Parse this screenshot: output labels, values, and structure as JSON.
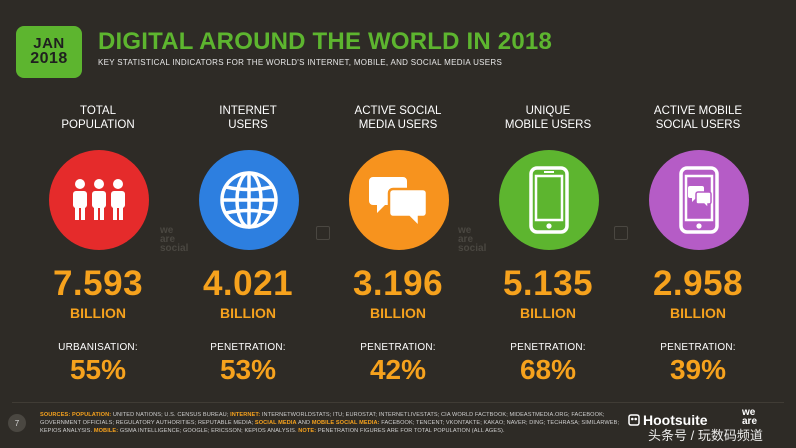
{
  "badge": {
    "month": "JAN",
    "year": "2018"
  },
  "header": {
    "title": "DIGITAL AROUND THE WORLD IN 2018",
    "subtitle": "KEY STATISTICAL INDICATORS FOR THE WORLD'S INTERNET, MOBILE, AND SOCIAL MEDIA USERS"
  },
  "colors": {
    "accent_green": "#5db52f",
    "accent_orange": "#f6a21d",
    "background": "#2e2b26",
    "population": "#e52b2b",
    "internet": "#2d7fe0",
    "social": "#f7931e",
    "mobile": "#5db52f",
    "mobile_social": "#b55cc6"
  },
  "columns": [
    {
      "label_line1": "TOTAL",
      "label_line2": "POPULATION",
      "icon": "people-icon",
      "value": "7.593",
      "unit": "BILLION",
      "stat_label": "URBANISATION:",
      "stat_value": "55%"
    },
    {
      "label_line1": "INTERNET",
      "label_line2": "USERS",
      "icon": "globe-icon",
      "value": "4.021",
      "unit": "BILLION",
      "stat_label": "PENETRATION:",
      "stat_value": "53%"
    },
    {
      "label_line1": "ACTIVE SOCIAL",
      "label_line2": "MEDIA USERS",
      "icon": "chat-bubbles-icon",
      "value": "3.196",
      "unit": "BILLION",
      "stat_label": "PENETRATION:",
      "stat_value": "42%"
    },
    {
      "label_line1": "UNIQUE",
      "label_line2": "MOBILE USERS",
      "icon": "smartphone-icon",
      "value": "5.135",
      "unit": "BILLION",
      "stat_label": "PENETRATION:",
      "stat_value": "68%"
    },
    {
      "label_line1": "ACTIVE MOBILE",
      "label_line2": "SOCIAL USERS",
      "icon": "mobile-chat-icon",
      "value": "2.958",
      "unit": "BILLION",
      "stat_label": "PENETRATION:",
      "stat_value": "39%"
    }
  ],
  "watermark": {
    "line1": "we",
    "line2": "are",
    "line3": "social"
  },
  "footer": {
    "page_number": "7",
    "sources_label": "SOURCES:",
    "population_label": "POPULATION:",
    "population_text": "UNITED NATIONS; U.S. CENSUS BUREAU;",
    "internet_label": "INTERNET:",
    "internet_text": "INTERNETWORLDSTATS; ITU; EUROSTAT; INTERNETLIVESTATS; CIA WORLD FACTBOOK; MIDEASTMEDIA.ORG; FACEBOOK; GOVERNMENT OFFICIALS; REGULATORY AUTHORITIES; REPUTABLE MEDIA;",
    "social_label": "SOCIAL MEDIA",
    "and_text": "AND",
    "mobile_social_label": "MOBILE SOCIAL MEDIA:",
    "social_text": "FACEBOOK; TENCENT; VKONTAKTE; KAKAO; NAVER; DING; TECHRASA; SIMILARWEB; KEPIOS ANALYSIS.",
    "mobile_label": "MOBILE:",
    "mobile_text": "GSMA INTELLIGENCE; GOOGLE; ERICSSON; KEPIOS ANALYSIS.",
    "note_label": "NOTE:",
    "note_text": "PENETRATION FIGURES ARE FOR TOTAL POPULATION (ALL AGES).",
    "brand_hootsuite": "Hootsuite",
    "brand_was_line1": "we",
    "brand_was_line2": "are",
    "overlay_text": "头条号 / 玩数码频道"
  }
}
